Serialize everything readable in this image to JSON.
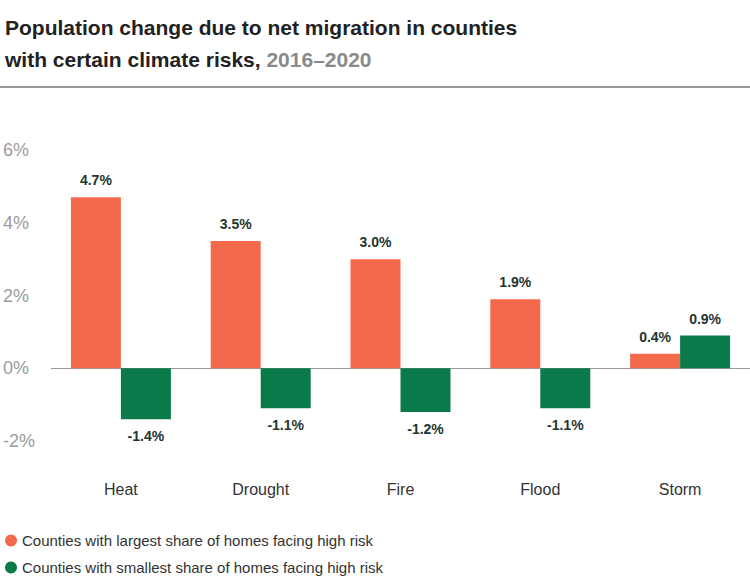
{
  "chart_data": {
    "type": "bar",
    "title": "Population change due to net migration in counties with certain climate risks,",
    "subtitle": "2016–2020",
    "categories": [
      "Heat",
      "Drought",
      "Fire",
      "Flood",
      "Storm"
    ],
    "series": [
      {
        "name": "Counties with largest share of homes facing high risk",
        "color": "#f26a4b",
        "values": [
          4.7,
          3.5,
          3.0,
          1.9,
          0.4
        ],
        "value_labels": [
          "4.7%",
          "3.5%",
          "3.0%",
          "1.9%",
          "0.4%"
        ]
      },
      {
        "name": "Counties with smallest share of homes facing high risk",
        "color": "#0b7a4a",
        "values": [
          -1.4,
          -1.1,
          -1.2,
          -1.1,
          0.9
        ],
        "value_labels": [
          "-1.4%",
          "-1.1%",
          "-1.2%",
          "-1.1%",
          "0.9%"
        ]
      }
    ],
    "ylim": [
      -2,
      6
    ],
    "yticks": [
      {
        "value": -2,
        "label": "-2%"
      },
      {
        "value": 0,
        "label": "0%"
      },
      {
        "value": 2,
        "label": "2%"
      },
      {
        "value": 4,
        "label": "4%"
      },
      {
        "value": 6,
        "label": "6%"
      }
    ],
    "grid": false,
    "legend": "bottom-left",
    "data_labels": true
  }
}
